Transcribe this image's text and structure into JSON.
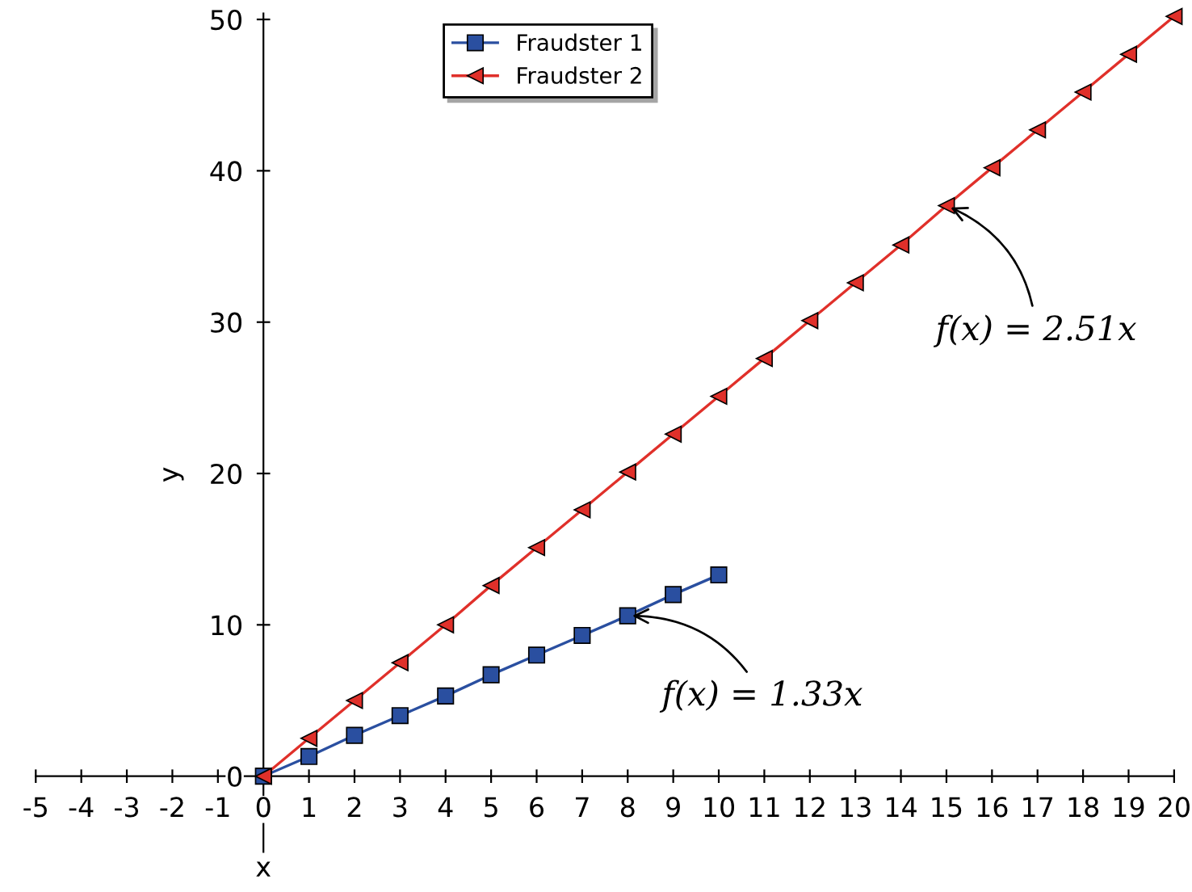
{
  "chart_data": {
    "type": "line",
    "xlabel": "x",
    "ylabel": "y",
    "series": [
      {
        "name": "Fraudster 1",
        "color": "#2a4fa0",
        "marker": "square",
        "x": [
          0,
          1,
          2,
          3,
          4,
          5,
          6,
          7,
          8,
          9,
          10
        ],
        "values": [
          0,
          1.3,
          2.7,
          4,
          5.3,
          6.7,
          8,
          9.3,
          10.6,
          12,
          13.3
        ]
      },
      {
        "name": "Fraudster 2",
        "color": "#e0302a",
        "marker": "triangle",
        "x": [
          0,
          1,
          2,
          3,
          4,
          5,
          6,
          7,
          8,
          9,
          10,
          11,
          12,
          13,
          14,
          15,
          16,
          17,
          18,
          19,
          20
        ],
        "values": [
          0,
          2.5,
          5,
          7.5,
          10,
          12.6,
          15.1,
          17.6,
          20.1,
          22.6,
          25.1,
          27.6,
          30.1,
          32.6,
          35.1,
          37.7,
          40.2,
          42.7,
          45.2,
          47.7,
          50.2
        ]
      }
    ],
    "xlim": [
      -5,
      20
    ],
    "ylim": [
      -5,
      50.4
    ],
    "xticks": [
      -5,
      -4,
      -3,
      -2,
      -1,
      0,
      1,
      2,
      3,
      4,
      5,
      6,
      7,
      8,
      9,
      10,
      11,
      12,
      13,
      14,
      15,
      16,
      17,
      18,
      19,
      20
    ],
    "yticks": [
      0,
      10,
      20,
      30,
      40,
      50
    ],
    "legend": "top",
    "annotations": [
      {
        "text": "f(x) = 2.51x",
        "x": 15,
        "y": 37.7
      },
      {
        "text": "f(x) = 1.33x",
        "x": 8,
        "y": 10.6
      }
    ]
  }
}
